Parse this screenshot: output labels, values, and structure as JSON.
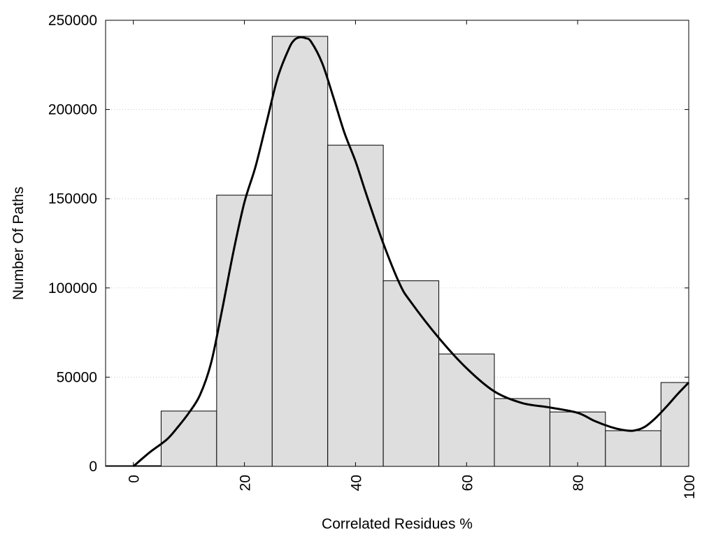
{
  "chart_data": {
    "type": "bar",
    "subtype": "histogram_with_density_curve",
    "title": "",
    "xlabel": "Correlated Residues %",
    "ylabel": "Number Of Paths",
    "xlim": [
      -5,
      100
    ],
    "ylim": [
      0,
      250000
    ],
    "x_ticks": [
      0,
      20,
      40,
      60,
      80,
      100
    ],
    "x_tick_labels": [
      "0",
      "20",
      "40",
      "60",
      "80",
      "100"
    ],
    "y_ticks": [
      0,
      50000,
      100000,
      150000,
      200000,
      250000
    ],
    "y_tick_labels": [
      "0",
      "50000",
      "100000",
      "150000",
      "200000",
      "250000"
    ],
    "grid": "horizontal dotted",
    "bin_width": 10,
    "categories": [
      0,
      10,
      20,
      30,
      40,
      50,
      60,
      70,
      80,
      90,
      100
    ],
    "values": [
      400,
      31000,
      152000,
      241000,
      180000,
      104000,
      63000,
      38000,
      30500,
      20000,
      47000
    ],
    "curve": {
      "x": [
        0,
        3,
        6,
        8,
        10,
        12,
        14,
        16,
        18,
        20,
        22,
        24,
        26,
        28,
        29,
        30,
        31,
        32,
        34,
        36,
        38,
        40,
        42,
        45,
        48,
        50,
        55,
        60,
        65,
        70,
        75,
        80,
        83,
        86,
        88,
        90,
        92,
        94,
        96,
        98,
        100
      ],
      "y": [
        0,
        8000,
        15000,
        22000,
        30000,
        40000,
        58000,
        88000,
        120000,
        148000,
        168000,
        193000,
        218000,
        234000,
        239000,
        240500,
        240000,
        238000,
        226000,
        207000,
        187000,
        171000,
        152000,
        125000,
        102000,
        92000,
        72000,
        55000,
        42000,
        35500,
        33000,
        30000,
        25500,
        22000,
        20500,
        20000,
        22000,
        27000,
        33500,
        40500,
        47000
      ],
      "color": "#000000"
    },
    "bar_fill": "#dedede",
    "bar_stroke": "#000000"
  }
}
